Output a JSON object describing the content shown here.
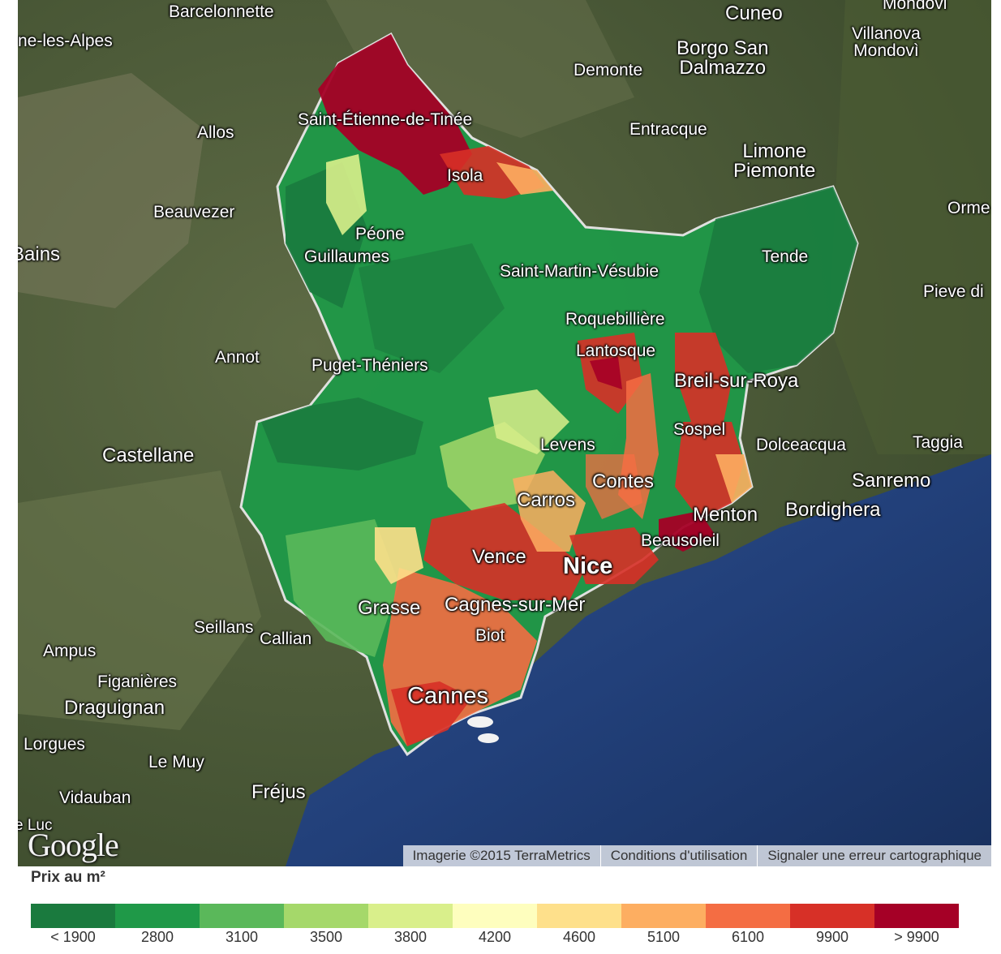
{
  "map": {
    "places": [
      {
        "id": "barcelonnette",
        "label": "Barcelonnette",
        "size": ""
      },
      {
        "id": "digne",
        "label": "ne-les-Alpes",
        "size": ""
      },
      {
        "id": "cuneo",
        "label": "Cuneo",
        "size": "big"
      },
      {
        "id": "mondovi",
        "label": "Mondovi",
        "size": ""
      },
      {
        "id": "villanova",
        "label": "Villanova\nMondovì",
        "size": ""
      },
      {
        "id": "borgo",
        "label": "Borgo San\nDalmazzo",
        "size": "big"
      },
      {
        "id": "demonte",
        "label": "Demonte",
        "size": ""
      },
      {
        "id": "saint-etienne",
        "label": "Saint-Étienne-de-Tinée",
        "size": ""
      },
      {
        "id": "allos",
        "label": "Allos",
        "size": ""
      },
      {
        "id": "entracque",
        "label": "Entracque",
        "size": ""
      },
      {
        "id": "limone",
        "label": "Limone\nPiemonte",
        "size": "big"
      },
      {
        "id": "isola",
        "label": "Isola",
        "size": ""
      },
      {
        "id": "beauvezer",
        "label": "Beauvezer",
        "size": ""
      },
      {
        "id": "ormea",
        "label": "Orme",
        "size": ""
      },
      {
        "id": "peone",
        "label": "Péone",
        "size": ""
      },
      {
        "id": "guillaumes",
        "label": "Guillaumes",
        "size": ""
      },
      {
        "id": "bains",
        "label": "Bains",
        "size": "big"
      },
      {
        "id": "tende",
        "label": "Tende",
        "size": ""
      },
      {
        "id": "saint-martin",
        "label": "Saint-Martin-Vésubie",
        "size": ""
      },
      {
        "id": "pieve",
        "label": "Pieve di",
        "size": ""
      },
      {
        "id": "roquebilliere",
        "label": "Roquebillière",
        "size": ""
      },
      {
        "id": "lantosque",
        "label": "Lantosque",
        "size": ""
      },
      {
        "id": "annot",
        "label": "Annot",
        "size": ""
      },
      {
        "id": "puget",
        "label": "Puget-Théniers",
        "size": ""
      },
      {
        "id": "breil",
        "label": "Breil-sur-Roya",
        "size": "big"
      },
      {
        "id": "sospel",
        "label": "Sospel",
        "size": ""
      },
      {
        "id": "castellane",
        "label": "Castellane",
        "size": "big"
      },
      {
        "id": "levens",
        "label": "Levens",
        "size": ""
      },
      {
        "id": "dolceacqua",
        "label": "Dolceacqua",
        "size": ""
      },
      {
        "id": "taggia",
        "label": "Taggia",
        "size": ""
      },
      {
        "id": "contes",
        "label": "Contes",
        "size": "big"
      },
      {
        "id": "sanremo",
        "label": "Sanremo",
        "size": "big"
      },
      {
        "id": "carros",
        "label": "Carros",
        "size": "big"
      },
      {
        "id": "menton",
        "label": "Menton",
        "size": "big"
      },
      {
        "id": "bordighera",
        "label": "Bordighera",
        "size": "big"
      },
      {
        "id": "beausoleil",
        "label": "Beausoleil",
        "size": ""
      },
      {
        "id": "vence",
        "label": "Vence",
        "size": "big"
      },
      {
        "id": "nice",
        "label": "Nice",
        "size": "huge"
      },
      {
        "id": "grasse",
        "label": "Grasse",
        "size": "big"
      },
      {
        "id": "cagnes",
        "label": "Cagnes-sur-Mer",
        "size": "big"
      },
      {
        "id": "seillans",
        "label": "Seillans",
        "size": ""
      },
      {
        "id": "callian",
        "label": "Callian",
        "size": ""
      },
      {
        "id": "biot",
        "label": "Biot",
        "size": ""
      },
      {
        "id": "ampus",
        "label": "Ampus",
        "size": ""
      },
      {
        "id": "figanieres",
        "label": "Figanières",
        "size": ""
      },
      {
        "id": "draguignan",
        "label": "Draguignan",
        "size": "big"
      },
      {
        "id": "cannes",
        "label": "Cannes",
        "size": "huge"
      },
      {
        "id": "lorgues",
        "label": "Lorgues",
        "size": ""
      },
      {
        "id": "lemuy",
        "label": "Le Muy",
        "size": ""
      },
      {
        "id": "vidauban",
        "label": "Vidauban",
        "size": ""
      },
      {
        "id": "frejus",
        "label": "Fréjus",
        "size": "big"
      },
      {
        "id": "leluc",
        "label": "e Luc",
        "size": "small"
      }
    ],
    "logo": "Google",
    "attribution": {
      "imagery": "Imagerie ©2015 TerraMetrics",
      "terms": "Conditions d'utilisation",
      "report": "Signaler une erreur cartographique"
    }
  },
  "legend": {
    "title": "Prix au m²",
    "classes": [
      {
        "label": "< 1900",
        "color": "#1a7a3e"
      },
      {
        "label": "2800",
        "color": "#1f9948"
      },
      {
        "label": "3100",
        "color": "#5ab85a"
      },
      {
        "label": "3500",
        "color": "#a5d86a"
      },
      {
        "label": "3800",
        "color": "#d9ef8b"
      },
      {
        "label": "4200",
        "color": "#fefebe"
      },
      {
        "label": "4600",
        "color": "#fee08b"
      },
      {
        "label": "5100",
        "color": "#fdae61"
      },
      {
        "label": "6100",
        "color": "#f46d43"
      },
      {
        "label": "9900",
        "color": "#d73027"
      },
      {
        "label": "> 9900",
        "color": "#a50026"
      }
    ]
  }
}
